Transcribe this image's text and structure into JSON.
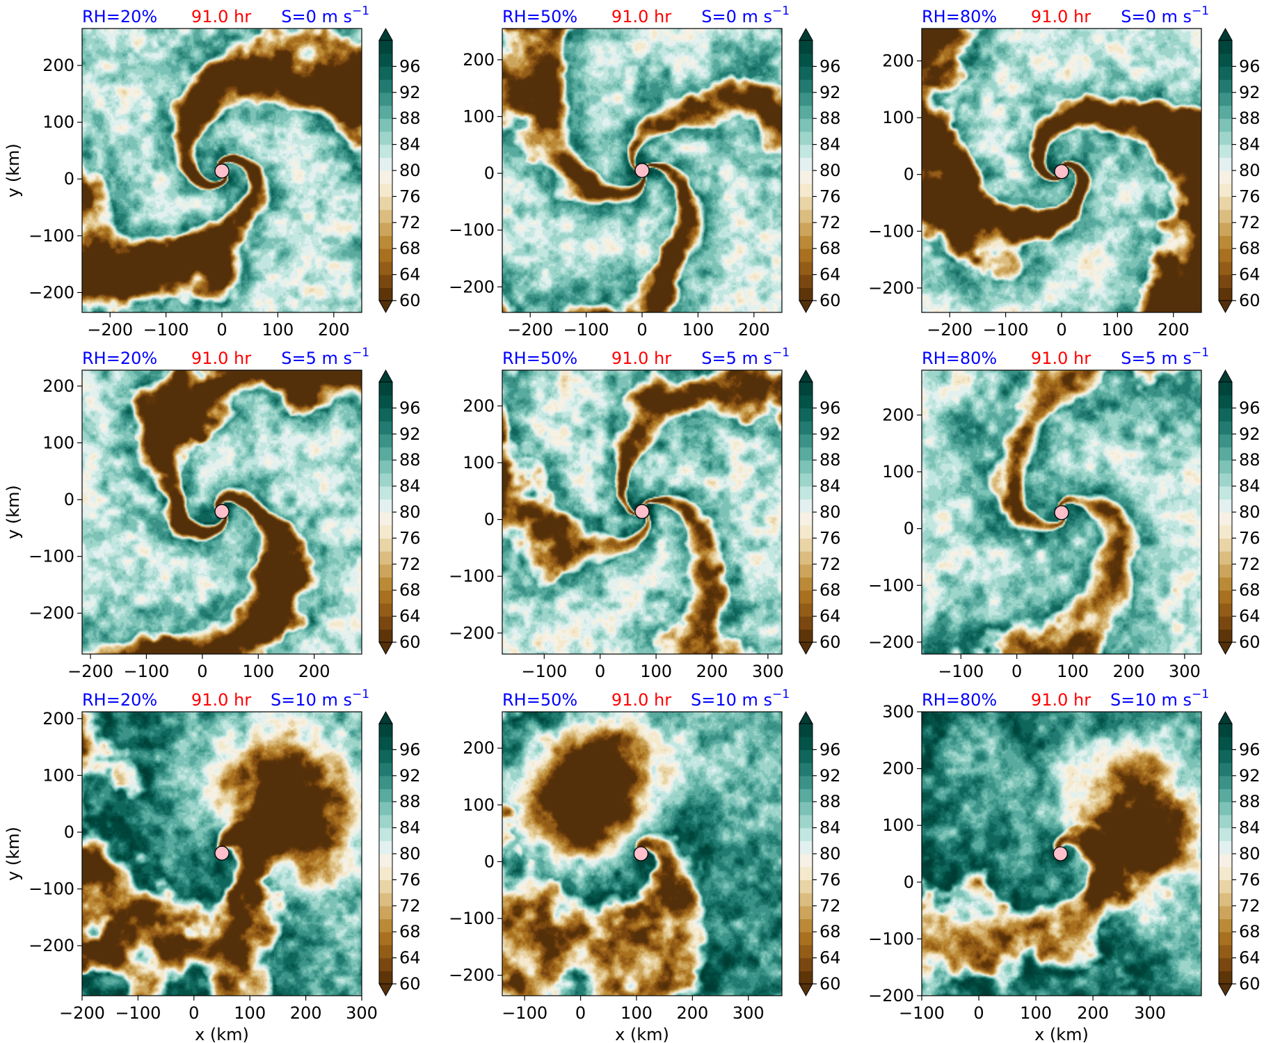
{
  "chart_data": {
    "type": "heatmap",
    "colorbar": {
      "levels": [
        60,
        62,
        64,
        66,
        68,
        70,
        72,
        74,
        76,
        78,
        80,
        82,
        84,
        86,
        88,
        90,
        92,
        94,
        96,
        98
      ],
      "tick_labels": [
        "60",
        "64",
        "68",
        "72",
        "76",
        "80",
        "84",
        "88",
        "92",
        "96"
      ],
      "tick_values": [
        60,
        64,
        68,
        72,
        76,
        80,
        84,
        88,
        92,
        96
      ],
      "extend": "both",
      "colors": [
        "#5e3509",
        "#7a4710",
        "#935c17",
        "#a8701f",
        "#bb8a37",
        "#cca45b",
        "#dcbd80",
        "#e9d4a6",
        "#f4e9cd",
        "#f6f1e4",
        "#e2f1ef",
        "#c2e6e0",
        "#9ed5cb",
        "#7cc2b6",
        "#58ab9e",
        "#3b9387",
        "#227b70",
        "#0f665b",
        "#045349",
        "#00453b"
      ],
      "under_color": "#54300a",
      "over_color": "#003c34"
    },
    "panels": [
      {
        "rh": "RH=20%",
        "time": "91.0 hr",
        "shear": "S=0 m s",
        "sup": "−1",
        "x_ticks": [
          "−200",
          "−100",
          "0",
          "100",
          "200"
        ],
        "x_vals": [
          -200,
          -100,
          0,
          100,
          200
        ],
        "xlim": [
          -250,
          250
        ],
        "y_ticks": [
          "−200",
          "−100",
          "0",
          "100",
          "200"
        ],
        "y_vals": [
          -200,
          -100,
          0,
          100,
          200
        ],
        "ylim": [
          -235,
          265
        ],
        "center": [
          0,
          14
        ],
        "seed": 11,
        "dry": 0.28,
        "arms": 2,
        "wind": 1.0,
        "dir": 0.0
      },
      {
        "rh": "RH=50%",
        "time": "91.0 hr",
        "shear": "S=0 m s",
        "sup": "−1",
        "x_ticks": [
          "−200",
          "−100",
          "0",
          "100",
          "200"
        ],
        "x_vals": [
          -200,
          -100,
          0,
          100,
          200
        ],
        "xlim": [
          -250,
          250
        ],
        "y_ticks": [
          "−200",
          "−100",
          "0",
          "100",
          "200"
        ],
        "y_vals": [
          -200,
          -100,
          0,
          100,
          200
        ],
        "ylim": [
          -245,
          255
        ],
        "center": [
          0,
          5
        ],
        "seed": 23,
        "dry": 0.22,
        "arms": 3,
        "wind": 1.0,
        "dir": 0.0
      },
      {
        "rh": "RH=80%",
        "time": "91.0 hr",
        "shear": "S=0 m s",
        "sup": "−1",
        "x_ticks": [
          "−200",
          "−100",
          "0",
          "100",
          "200"
        ],
        "x_vals": [
          -200,
          -100,
          0,
          100,
          200
        ],
        "xlim": [
          -250,
          250
        ],
        "y_ticks": [
          "−200",
          "−100",
          "0",
          "100",
          "200"
        ],
        "y_vals": [
          -200,
          -100,
          0,
          100,
          200
        ],
        "ylim": [
          -243,
          257
        ],
        "center": [
          0,
          5
        ],
        "seed": 37,
        "dry": 0.3,
        "arms": 2,
        "wind": 1.1,
        "dir": 0.0
      },
      {
        "rh": "RH=20%",
        "time": "91.0 hr",
        "shear": "S=5 m s",
        "sup": "−1",
        "x_ticks": [
          "−200",
          "−100",
          "0",
          "100",
          "200"
        ],
        "x_vals": [
          -200,
          -100,
          0,
          100,
          200
        ],
        "xlim": [
          -215,
          285
        ],
        "y_ticks": [
          "−200",
          "−100",
          "0",
          "100",
          "200"
        ],
        "y_vals": [
          -200,
          -100,
          0,
          100,
          200
        ],
        "ylim": [
          -272,
          228
        ],
        "center": [
          35,
          -21
        ],
        "seed": 41,
        "dry": 0.27,
        "arms": 2,
        "wind": 0.9,
        "dir": 0.0
      },
      {
        "rh": "RH=50%",
        "time": "91.0 hr",
        "shear": "S=5 m s",
        "sup": "−1",
        "x_ticks": [
          "−100",
          "0",
          "100",
          "200",
          "300"
        ],
        "x_vals": [
          -100,
          0,
          100,
          200,
          300
        ],
        "xlim": [
          -175,
          325
        ],
        "y_ticks": [
          "−200",
          "−100",
          "0",
          "100",
          "200"
        ],
        "y_vals": [
          -200,
          -100,
          0,
          100,
          200
        ],
        "ylim": [
          -237,
          263
        ],
        "center": [
          75,
          14
        ],
        "seed": 53,
        "dry": 0.2,
        "arms": 3,
        "wind": 0.9,
        "dir": 0.0
      },
      {
        "rh": "RH=80%",
        "time": "91.0 hr",
        "shear": "S=5 m s",
        "sup": "−1",
        "x_ticks": [
          "−100",
          "0",
          "100",
          "200",
          "300"
        ],
        "x_vals": [
          -100,
          0,
          100,
          200,
          300
        ],
        "xlim": [
          -170,
          330
        ],
        "y_ticks": [
          "−200",
          "−100",
          "0",
          "100",
          "200"
        ],
        "y_vals": [
          -200,
          -100,
          0,
          100,
          200
        ],
        "ylim": [
          -221,
          279
        ],
        "center": [
          80,
          28
        ],
        "seed": 67,
        "dry": 0.18,
        "arms": 2,
        "wind": 0.9,
        "dir": 0.0
      },
      {
        "rh": "RH=20%",
        "time": "91.0 hr",
        "shear": "S=10 m s",
        "sup": "−1",
        "x_ticks": [
          "−200",
          "−100",
          "0",
          "100",
          "200",
          "300"
        ],
        "x_vals": [
          -200,
          -100,
          0,
          100,
          200,
          300
        ],
        "xlim": [
          -200,
          300
        ],
        "y_ticks": [
          "−200",
          "−100",
          "0",
          "100",
          "200"
        ],
        "y_vals": [
          -200,
          -100,
          0,
          100,
          200
        ],
        "ylim": [
          -288,
          212
        ],
        "center": [
          50,
          -37
        ],
        "seed": 79,
        "dry": 0.25,
        "arms": 1,
        "wind": 0.5,
        "dir": 0.6
      },
      {
        "rh": "RH=50%",
        "time": "91.0 hr",
        "shear": "S=10 m s",
        "sup": "−1",
        "x_ticks": [
          "−100",
          "0",
          "100",
          "200",
          "300"
        ],
        "x_vals": [
          -100,
          0,
          100,
          200,
          300
        ],
        "xlim": [
          -140,
          360
        ],
        "y_ticks": [
          "−200",
          "−100",
          "0",
          "100",
          "200"
        ],
        "y_vals": [
          -200,
          -100,
          0,
          100,
          200
        ],
        "ylim": [
          -236,
          264
        ],
        "center": [
          108,
          14
        ],
        "seed": 83,
        "dry": 0.22,
        "arms": 1,
        "wind": 0.5,
        "dir": 2.3
      },
      {
        "rh": "RH=80%",
        "time": "91.0 hr",
        "shear": "S=10 m s",
        "sup": "−1",
        "x_ticks": [
          "−100",
          "0",
          "100",
          "200",
          "300"
        ],
        "x_vals": [
          -100,
          0,
          100,
          200,
          300
        ],
        "xlim": [
          -100,
          390
        ],
        "y_ticks": [
          "−200",
          "−100",
          "0",
          "100",
          "200",
          "300"
        ],
        "y_vals": [
          -200,
          -100,
          0,
          100,
          200,
          300
        ],
        "ylim": [
          -200,
          300
        ],
        "center": [
          143,
          50
        ],
        "seed": 97,
        "dry": 0.2,
        "arms": 1,
        "wind": 0.5,
        "dir": 0.3
      }
    ],
    "xlabel": "x (km)",
    "ylabel": "y (km)",
    "center_marker_color": "#ffc0cb",
    "rh_color": "#0000ff",
    "time_color": "#ff0000",
    "shear_color": "#0000ff"
  }
}
